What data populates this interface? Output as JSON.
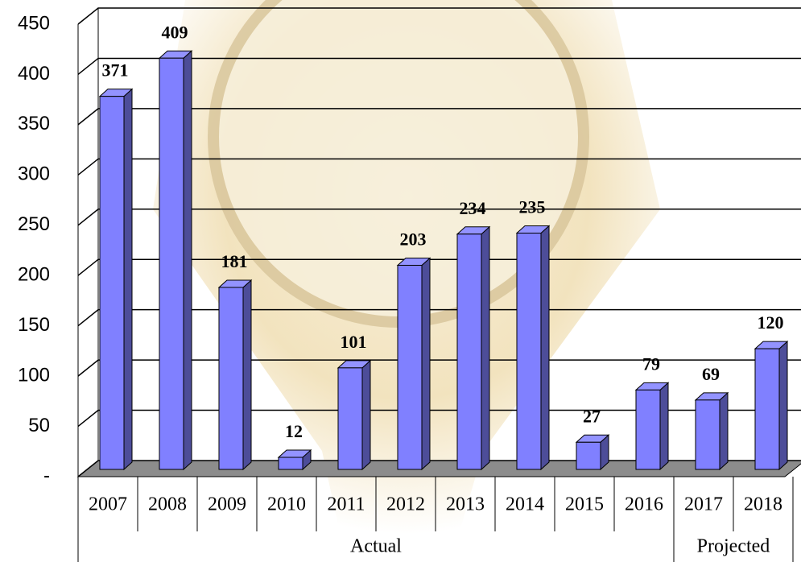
{
  "chart_data": {
    "type": "bar3d",
    "groups": [
      {
        "name": "Actual",
        "categories": [
          "2007",
          "2008",
          "2009",
          "2010",
          "2011",
          "2012",
          "2013",
          "2014",
          "2015",
          "2016"
        ],
        "values": [
          371,
          409,
          181,
          12,
          101,
          203,
          234,
          235,
          27,
          79
        ]
      },
      {
        "name": "Projected",
        "categories": [
          "2017",
          "2018"
        ],
        "values": [
          69,
          120
        ]
      }
    ],
    "color": "#8080ff",
    "ylim": [
      0,
      450
    ],
    "yticks": [
      {
        "value": 0,
        "label": "-"
      },
      50,
      100,
      150,
      200,
      250,
      300,
      350,
      400,
      450
    ],
    "grid": true
  }
}
